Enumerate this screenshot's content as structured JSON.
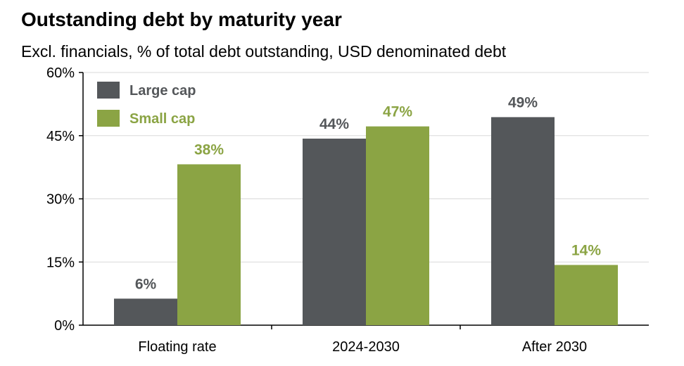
{
  "chart_data": {
    "type": "bar",
    "title": "Outstanding debt by maturity year",
    "subtitle": "Excl. financials, % of total debt outstanding, USD denominated debt",
    "categories": [
      "Floating rate",
      "2024-2030",
      "After 2030"
    ],
    "series": [
      {
        "name": "Large cap",
        "color": "#54575a",
        "label_color": "#54575a",
        "values": [
          6.3,
          44.3,
          49.4
        ],
        "labels": [
          "6%",
          "44%",
          "49%"
        ]
      },
      {
        "name": "Small cap",
        "color": "#8ba444",
        "label_color": "#8ba444",
        "values": [
          38.2,
          47.2,
          14.3
        ],
        "labels": [
          "38%",
          "47%",
          "14%"
        ]
      }
    ],
    "ylim": [
      0,
      60
    ],
    "yticks": [
      0,
      15,
      30,
      45,
      60
    ],
    "ytick_labels": [
      "0%",
      "15%",
      "30%",
      "45%",
      "60%"
    ],
    "grid": true,
    "legend_position": "top-left",
    "xlabel": "",
    "ylabel": ""
  }
}
